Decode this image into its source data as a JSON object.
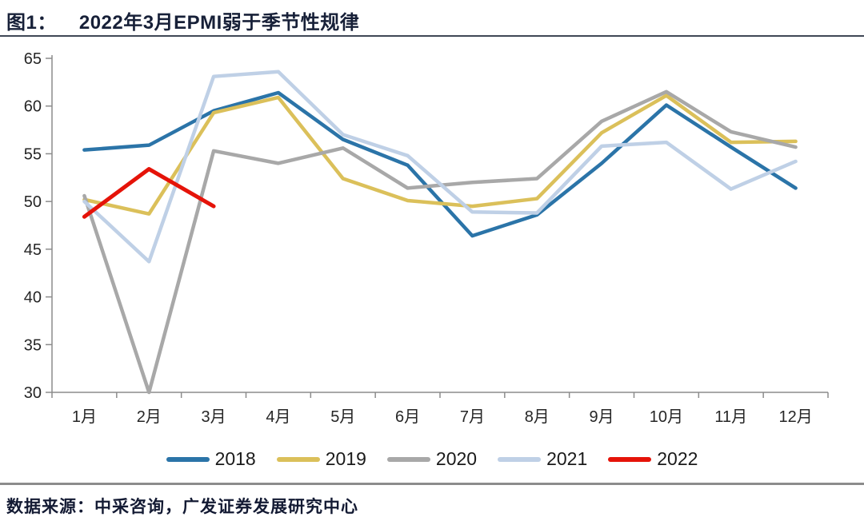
{
  "header": {
    "figure_label": "图1：",
    "title": "2022年3月EPMI弱于季节性规律"
  },
  "colors": {
    "title_text": "#172038",
    "title_rule": "#3f4756",
    "footer_rule": "#8c8c8c",
    "axis_line": "#8c8c8c",
    "tick_label": "#262626"
  },
  "chart_data": {
    "type": "line",
    "title": "2022年3月EPMI弱于季节性规律",
    "xlabel": "",
    "ylabel": "",
    "categories": [
      "1月",
      "2月",
      "3月",
      "4月",
      "5月",
      "6月",
      "7月",
      "8月",
      "9月",
      "10月",
      "11月",
      "12月"
    ],
    "series": [
      {
        "name": "2018",
        "color": "#2b74a8",
        "values": [
          55.4,
          55.9,
          59.5,
          61.4,
          56.5,
          53.8,
          46.4,
          48.6,
          54.0,
          60.1,
          55.7,
          51.4
        ]
      },
      {
        "name": "2019",
        "color": "#dbc05a",
        "values": [
          50.2,
          48.7,
          59.3,
          60.9,
          52.4,
          50.1,
          49.5,
          50.3,
          57.2,
          61.1,
          56.2,
          56.3
        ]
      },
      {
        "name": "2020",
        "color": "#a8a8a8",
        "values": [
          50.6,
          30.0,
          55.3,
          54.0,
          55.6,
          51.4,
          52.0,
          52.4,
          58.4,
          61.5,
          57.3,
          55.7
        ]
      },
      {
        "name": "2021",
        "color": "#bfd0e6",
        "values": [
          50.0,
          43.7,
          63.1,
          63.6,
          57.0,
          54.8,
          48.9,
          48.8,
          55.8,
          56.2,
          51.3,
          54.2
        ]
      },
      {
        "name": "2022",
        "color": "#e51309",
        "values": [
          48.4,
          53.4,
          49.5
        ]
      }
    ],
    "ylim": [
      30,
      65
    ],
    "ytick_step": 5,
    "grid": false,
    "legend_position": "bottom"
  },
  "footer": {
    "source": "数据来源：中采咨询，广发证券发展研究中心"
  }
}
